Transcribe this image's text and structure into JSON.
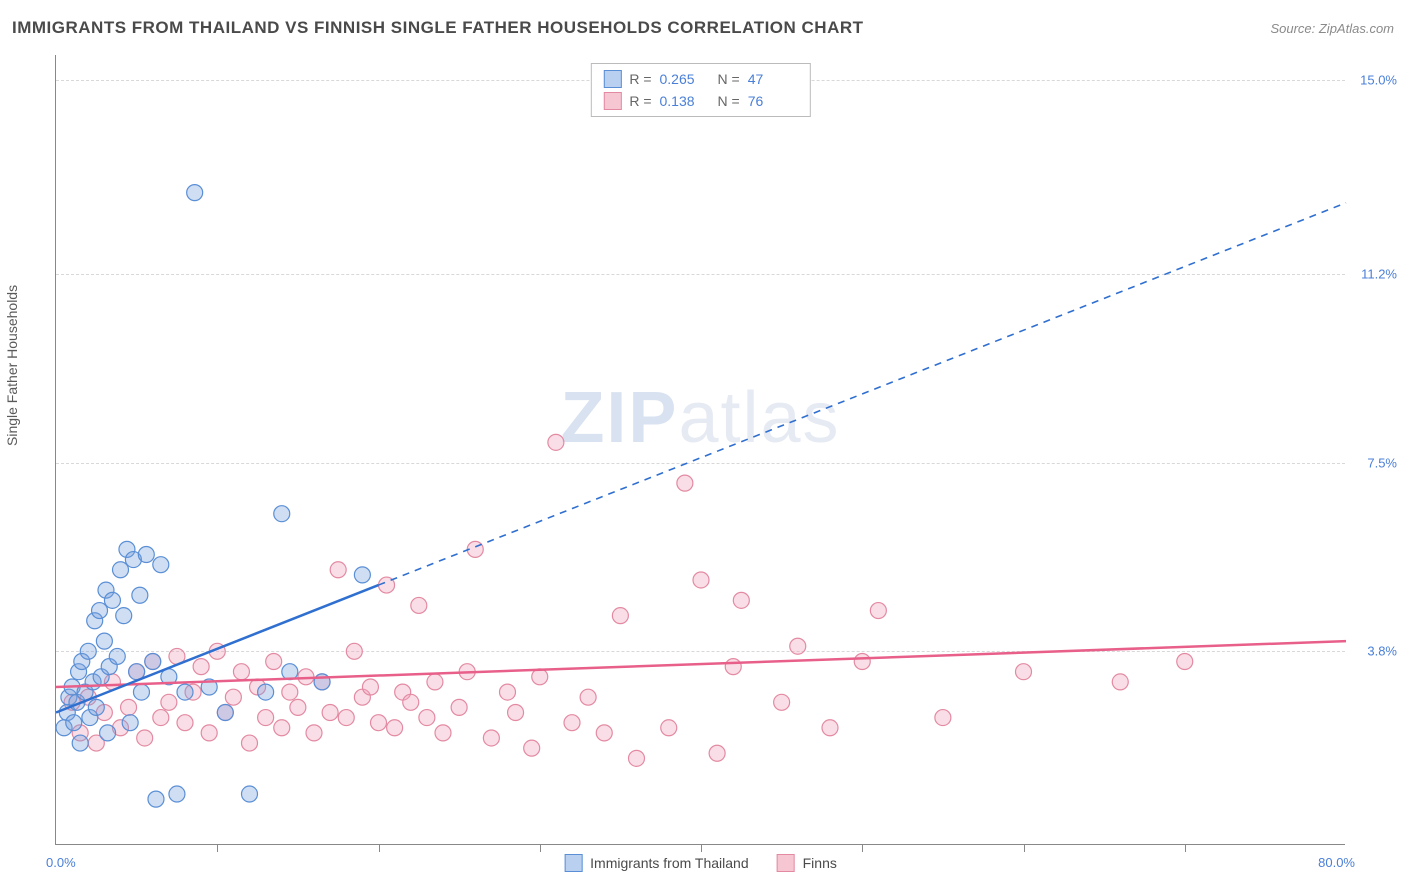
{
  "header": {
    "title": "IMMIGRANTS FROM THAILAND VS FINNISH SINGLE FATHER HOUSEHOLDS CORRELATION CHART",
    "source": "Source: ZipAtlas.com"
  },
  "watermark": {
    "part1": "ZIP",
    "part2": "atlas"
  },
  "axes": {
    "y_label": "Single Father Households",
    "x_min": 0.0,
    "x_max": 80.0,
    "y_min": 0.0,
    "y_max": 15.5,
    "x_tick_left": "0.0%",
    "x_tick_right": "80.0%",
    "y_ticks": [
      {
        "v": 3.8,
        "label": "3.8%"
      },
      {
        "v": 7.5,
        "label": "7.5%"
      },
      {
        "v": 11.2,
        "label": "11.2%"
      },
      {
        "v": 15.0,
        "label": "15.0%"
      }
    ],
    "x_minor_ticks": [
      10,
      20,
      30,
      40,
      50,
      60,
      70
    ]
  },
  "legend_top": {
    "rows": [
      {
        "swatch_fill": "#b9d0f0",
        "swatch_stroke": "#5a8fd6",
        "r_label": "R =",
        "r_val": "0.265",
        "n_label": "N =",
        "n_val": "47"
      },
      {
        "swatch_fill": "#f6c7d3",
        "swatch_stroke": "#e38aa2",
        "r_label": "R =",
        "r_val": "0.138",
        "n_label": "N =",
        "n_val": "76"
      }
    ]
  },
  "legend_bottom": {
    "items": [
      {
        "swatch_fill": "#b9d0f0",
        "swatch_stroke": "#5a8fd6",
        "label": "Immigrants from Thailand"
      },
      {
        "swatch_fill": "#f6c7d3",
        "swatch_stroke": "#e38aa2",
        "label": "Finns"
      }
    ]
  },
  "series": {
    "blue": {
      "fill": "rgba(120,160,220,0.35)",
      "stroke": "#5a8fd6",
      "marker_r": 8,
      "trend": {
        "stroke": "#2f6fd0",
        "width": 2.5,
        "solid_xmax": 20,
        "x1": 0,
        "y1": 2.6,
        "x2": 80,
        "y2": 12.6
      },
      "points": [
        [
          0.5,
          2.3
        ],
        [
          0.7,
          2.6
        ],
        [
          0.8,
          2.9
        ],
        [
          1.0,
          3.1
        ],
        [
          1.1,
          2.4
        ],
        [
          1.3,
          2.8
        ],
        [
          1.4,
          3.4
        ],
        [
          1.5,
          2.0
        ],
        [
          1.6,
          3.6
        ],
        [
          1.8,
          3.0
        ],
        [
          2.0,
          3.8
        ],
        [
          2.1,
          2.5
        ],
        [
          2.3,
          3.2
        ],
        [
          2.4,
          4.4
        ],
        [
          2.5,
          2.7
        ],
        [
          2.7,
          4.6
        ],
        [
          2.8,
          3.3
        ],
        [
          3.0,
          4.0
        ],
        [
          3.1,
          5.0
        ],
        [
          3.2,
          2.2
        ],
        [
          3.3,
          3.5
        ],
        [
          3.5,
          4.8
        ],
        [
          3.8,
          3.7
        ],
        [
          4.0,
          5.4
        ],
        [
          4.2,
          4.5
        ],
        [
          4.4,
          5.8
        ],
        [
          4.6,
          2.4
        ],
        [
          4.8,
          5.6
        ],
        [
          5.0,
          3.4
        ],
        [
          5.2,
          4.9
        ],
        [
          5.6,
          5.7
        ],
        [
          6.0,
          3.6
        ],
        [
          6.2,
          0.9
        ],
        [
          6.5,
          5.5
        ],
        [
          7.0,
          3.3
        ],
        [
          7.5,
          1.0
        ],
        [
          8.0,
          3.0
        ],
        [
          8.6,
          12.8
        ],
        [
          9.5,
          3.1
        ],
        [
          10.5,
          2.6
        ],
        [
          12.0,
          1.0
        ],
        [
          13.0,
          3.0
        ],
        [
          14.0,
          6.5
        ],
        [
          16.5,
          3.2
        ],
        [
          19.0,
          5.3
        ],
        [
          14.5,
          3.4
        ],
        [
          5.3,
          3.0
        ]
      ]
    },
    "pink": {
      "fill": "rgba(240,160,185,0.35)",
      "stroke": "#e38aa2",
      "marker_r": 8,
      "trend": {
        "stroke": "#e85f8a",
        "width": 2.5,
        "x1": 0,
        "y1": 3.1,
        "x2": 80,
        "y2": 4.0
      },
      "points": [
        [
          1.0,
          2.8
        ],
        [
          1.5,
          2.2
        ],
        [
          2.0,
          2.9
        ],
        [
          2.5,
          2.0
        ],
        [
          3.0,
          2.6
        ],
        [
          3.5,
          3.2
        ],
        [
          4.0,
          2.3
        ],
        [
          4.5,
          2.7
        ],
        [
          5.0,
          3.4
        ],
        [
          5.5,
          2.1
        ],
        [
          6.0,
          3.6
        ],
        [
          6.5,
          2.5
        ],
        [
          7.0,
          2.8
        ],
        [
          7.5,
          3.7
        ],
        [
          8.0,
          2.4
        ],
        [
          8.5,
          3.0
        ],
        [
          9.0,
          3.5
        ],
        [
          9.5,
          2.2
        ],
        [
          10.0,
          3.8
        ],
        [
          10.5,
          2.6
        ],
        [
          11.0,
          2.9
        ],
        [
          11.5,
          3.4
        ],
        [
          12.0,
          2.0
        ],
        [
          12.5,
          3.1
        ],
        [
          13.0,
          2.5
        ],
        [
          13.5,
          3.6
        ],
        [
          14.0,
          2.3
        ],
        [
          14.5,
          3.0
        ],
        [
          15.0,
          2.7
        ],
        [
          15.5,
          3.3
        ],
        [
          16.0,
          2.2
        ],
        [
          16.5,
          3.2
        ],
        [
          17.0,
          2.6
        ],
        [
          17.5,
          5.4
        ],
        [
          18.0,
          2.5
        ],
        [
          18.5,
          3.8
        ],
        [
          19.0,
          2.9
        ],
        [
          19.5,
          3.1
        ],
        [
          20.0,
          2.4
        ],
        [
          20.5,
          5.1
        ],
        [
          21.0,
          2.3
        ],
        [
          21.5,
          3.0
        ],
        [
          22.0,
          2.8
        ],
        [
          22.5,
          4.7
        ],
        [
          23.0,
          2.5
        ],
        [
          23.5,
          3.2
        ],
        [
          24.0,
          2.2
        ],
        [
          25.0,
          2.7
        ],
        [
          25.5,
          3.4
        ],
        [
          26.0,
          5.8
        ],
        [
          27.0,
          2.1
        ],
        [
          28.0,
          3.0
        ],
        [
          28.5,
          2.6
        ],
        [
          29.5,
          1.9
        ],
        [
          30.0,
          3.3
        ],
        [
          31.0,
          7.9
        ],
        [
          32.0,
          2.4
        ],
        [
          33.0,
          2.9
        ],
        [
          34.0,
          2.2
        ],
        [
          35.0,
          4.5
        ],
        [
          36.0,
          1.7
        ],
        [
          38.0,
          2.3
        ],
        [
          39.0,
          7.1
        ],
        [
          40.0,
          5.2
        ],
        [
          41.0,
          1.8
        ],
        [
          42.0,
          3.5
        ],
        [
          42.5,
          4.8
        ],
        [
          45.0,
          2.8
        ],
        [
          46.0,
          3.9
        ],
        [
          48.0,
          2.3
        ],
        [
          50.0,
          3.6
        ],
        [
          51.0,
          4.6
        ],
        [
          55.0,
          2.5
        ],
        [
          60.0,
          3.4
        ],
        [
          66.0,
          3.2
        ],
        [
          70.0,
          3.6
        ]
      ]
    }
  },
  "style": {
    "bg": "#ffffff",
    "axis_color": "#888888",
    "grid_color": "#d8d8d8",
    "tick_label_color": "#4a7fd8"
  }
}
